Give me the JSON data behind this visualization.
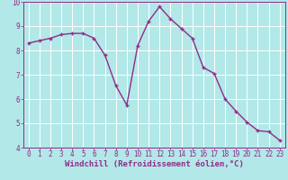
{
  "x": [
    0,
    1,
    2,
    3,
    4,
    5,
    6,
    7,
    8,
    9,
    10,
    11,
    12,
    13,
    14,
    15,
    16,
    17,
    18,
    19,
    20,
    21,
    22,
    23
  ],
  "y": [
    8.3,
    8.4,
    8.5,
    8.65,
    8.7,
    8.7,
    8.5,
    7.8,
    6.55,
    5.75,
    8.2,
    9.2,
    9.8,
    9.3,
    8.9,
    8.5,
    7.3,
    7.05,
    6.0,
    5.5,
    5.05,
    4.7,
    4.65,
    4.3
  ],
  "line_color": "#912b8a",
  "marker": "+",
  "background_color": "#b2e8e8",
  "grid_color": "#ffffff",
  "xlabel": "Windchill (Refroidissement éolien,°C)",
  "xlim": [
    -0.5,
    23.5
  ],
  "ylim": [
    4,
    10
  ],
  "yticks": [
    4,
    5,
    6,
    7,
    8,
    9,
    10
  ],
  "xticks": [
    0,
    1,
    2,
    3,
    4,
    5,
    6,
    7,
    8,
    9,
    10,
    11,
    12,
    13,
    14,
    15,
    16,
    17,
    18,
    19,
    20,
    21,
    22,
    23
  ],
  "xlabel_fontsize": 6.5,
  "tick_fontsize": 5.5,
  "line_width": 1.0,
  "marker_size": 3.5
}
